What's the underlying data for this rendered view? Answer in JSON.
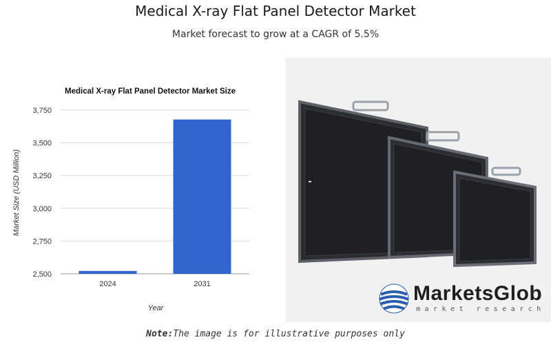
{
  "header": {
    "title": "Medical X-ray Flat Panel Detector Market",
    "subtitle": "Market forecast to grow at a CAGR of 5.5%"
  },
  "chart_data": {
    "type": "bar",
    "title": "Medical X-ray Flat Panel Detector Market Size",
    "xlabel": "Year",
    "ylabel": "Market Size (USD Million)",
    "categories": [
      "2024",
      "2031"
    ],
    "values": [
      2522,
      3678
    ],
    "ylim": [
      2500,
      3750
    ],
    "yticks": [
      2500,
      2750,
      3000,
      3250,
      3500,
      3750
    ],
    "ytick_labels": [
      "2,500",
      "2,750",
      "3,000",
      "3,250",
      "3,500",
      "3,750"
    ],
    "bar_color": "#3366cc",
    "grid": true
  },
  "illustration": {
    "icon": "flat-panel-detectors-image"
  },
  "branding": {
    "logo_name": "MarketsGlob",
    "logo_tagline": "market research",
    "logo_icon": "globe-icon",
    "logo_color": "#2a5fb0"
  },
  "footer": {
    "note_label": "Note:",
    "note_text": "The image is for illustrative purposes only"
  }
}
